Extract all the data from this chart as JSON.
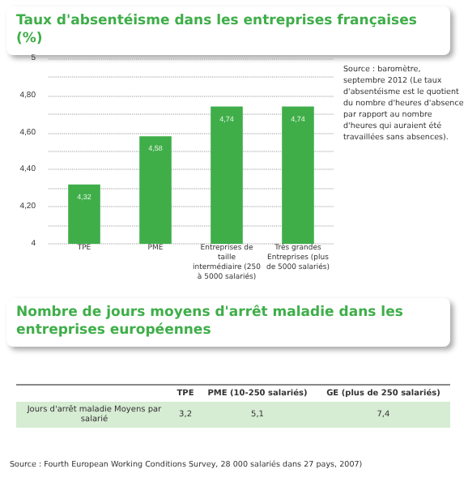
{
  "chart_data": [
    {
      "type": "bar",
      "title": "Taux d'absentéisme dans les entreprises françaises (%)",
      "categories": [
        "TPE",
        "PME",
        "Entreprises de taille intermédiaire (250 à 5000 salariés)",
        "Très grandes Entreprises (plus de 5000 salariés)"
      ],
      "values": [
        4.32,
        4.58,
        4.74,
        4.74
      ],
      "value_labels": [
        "4,32",
        "4,58",
        "4,74",
        "4,74"
      ],
      "color": "#3fae49",
      "ylim": [
        4,
        5
      ],
      "yticks": [
        4,
        {
          "value": 4.1,
          "label": null
        },
        {
          "value": 4.2,
          "label": "4,20"
        },
        {
          "value": 4.3,
          "label": null
        },
        {
          "value": 4.4,
          "label": "4,40"
        },
        {
          "value": 4.5,
          "label": null
        },
        {
          "value": 4.6,
          "label": "4,60"
        },
        {
          "value": 4.7,
          "label": null
        },
        {
          "value": 4.8,
          "label": "4,80"
        },
        {
          "value": 4.9,
          "label": null
        },
        5
      ],
      "grid": "y",
      "line_style": "dotted",
      "annotations": [
        "Source : baromètre, septembre 2012 (Le taux d'absentéisme est le quotient du nombre d'heures d'absence par rapport au nombre d'heures qui auraient été travaillées sans absences)."
      ]
    },
    {
      "type": "other",
      "title": "Nombre de jours moyens d'arrêt maladie dans les entreprises européennes",
      "categories": [
        "TPE",
        "PME (10-250 salariés)",
        "GE (plus de 250 salariés)"
      ],
      "values": [
        3.2,
        5.1,
        7.4
      ],
      "value_labels": [
        "3,2",
        "5,1",
        "7,4"
      ],
      "ylabel": "Jours d'arrêt maladie Moyens par salarié",
      "annotations": [
        "Source : Fourth European Working Conditions Survey, 28 000 salariés dans 27 pays, 2007)"
      ]
    }
  ]
}
